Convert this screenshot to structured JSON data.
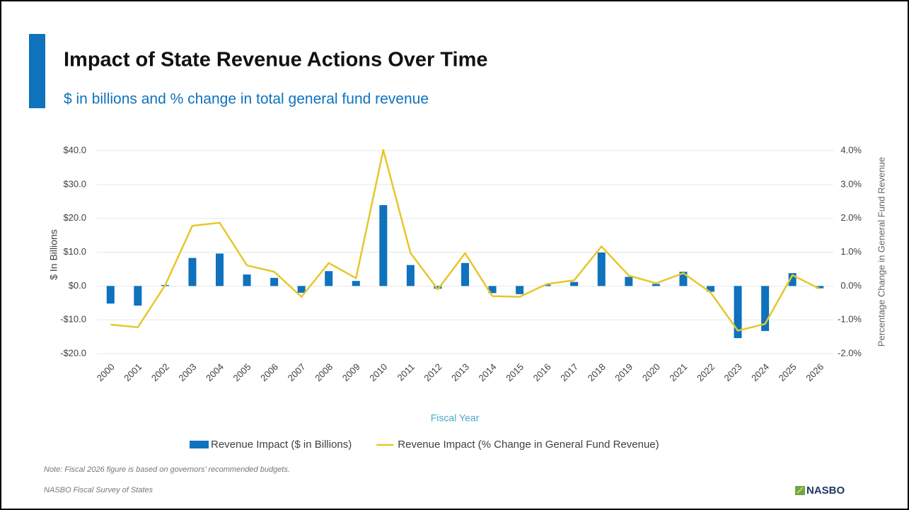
{
  "chart_data": {
    "type": "combo",
    "title": "Impact of State Revenue Actions Over Time",
    "subtitle": "$ in billions and % change in total general fund revenue",
    "x_label": "Fiscal Year",
    "y_label": "$ In Billions",
    "y2_label": "Percentage Change in General Fund Revenue",
    "categories": [
      "2000",
      "2001",
      "2002",
      "2003",
      "2004",
      "2005",
      "2006",
      "2007",
      "2008",
      "2009",
      "2010",
      "2011",
      "2012",
      "2013",
      "2014",
      "2015",
      "2016",
      "2017",
      "2018",
      "2019",
      "2020",
      "2021",
      "2022",
      "2023",
      "2024",
      "2025",
      "2026"
    ],
    "series": [
      {
        "name": "Revenue Impact ($ in Billions)",
        "type": "bar",
        "color": "#0e72bd",
        "values": [
          -5.2,
          -5.8,
          0.3,
          8.3,
          9.6,
          3.4,
          2.4,
          -2.0,
          4.4,
          1.5,
          23.9,
          6.2,
          -0.8,
          6.8,
          -2.1,
          -2.4,
          0.4,
          1.2,
          9.9,
          2.7,
          0.6,
          4.2,
          -1.7,
          -15.4,
          -13.3,
          3.8,
          -0.7
        ]
      },
      {
        "name": "Revenue Impact (% Change in General Fund Revenue)",
        "type": "line",
        "axis": "y2",
        "color": "#e6c72a",
        "values": [
          -1.14,
          -1.22,
          0.02,
          1.78,
          1.87,
          0.61,
          0.42,
          -0.32,
          0.68,
          0.23,
          4.02,
          0.97,
          -0.1,
          0.97,
          -0.3,
          -0.32,
          0.06,
          0.17,
          1.17,
          0.31,
          0.08,
          0.38,
          -0.19,
          -1.32,
          -1.12,
          0.32,
          -0.08
        ]
      }
    ],
    "ylim": [
      -20,
      40
    ],
    "yticks": [
      {
        "value": -20,
        "label": "-$20.0"
      },
      {
        "value": -10,
        "label": "-$10.0"
      },
      {
        "value": 0,
        "label": "$0.0"
      },
      {
        "value": 10,
        "label": "$10.0"
      },
      {
        "value": 20,
        "label": "$20.0"
      },
      {
        "value": 30,
        "label": "$30.0"
      },
      {
        "value": 40,
        "label": "$40.0"
      }
    ],
    "y2lim": [
      -2,
      4
    ],
    "y2ticks": [
      {
        "value": -2,
        "label": "-2.0%"
      },
      {
        "value": -1,
        "label": "-1.0%"
      },
      {
        "value": 0,
        "label": "0.0%"
      },
      {
        "value": 1,
        "label": "1.0%"
      },
      {
        "value": 2,
        "label": "2.0%"
      },
      {
        "value": 3,
        "label": "3.0%"
      },
      {
        "value": 4,
        "label": "4.0%"
      }
    ],
    "grid": true,
    "legend": "bottom",
    "notes": [
      "Note: Fiscal 2026 figure is based on governors’ recommended budgets.",
      "NASBO Fiscal Survey of States"
    ],
    "logo": "NASBO"
  }
}
